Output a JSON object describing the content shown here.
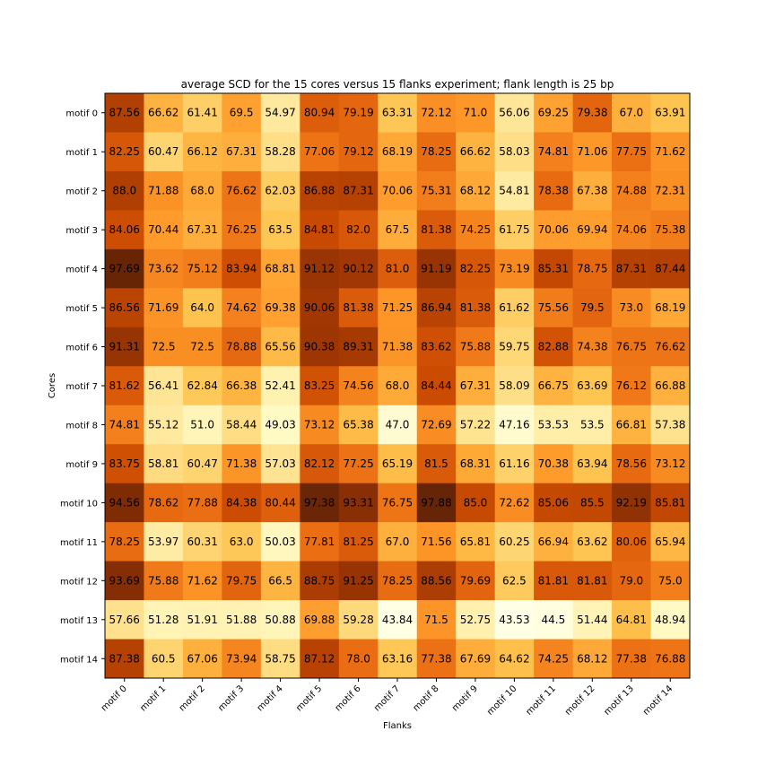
{
  "chart_data": {
    "type": "heatmap",
    "title": "average SCD for the 15 cores versus 15 flanks experiment; flank length is 25 bp",
    "xlabel": "Flanks",
    "ylabel": "Cores",
    "x_categories": [
      "motif 0",
      "motif 1",
      "motif 2",
      "motif 3",
      "motif 4",
      "motif 5",
      "motif 6",
      "motif 7",
      "motif 8",
      "motif 9",
      "motif 10",
      "motif 11",
      "motif 12",
      "motif 13",
      "motif 14"
    ],
    "y_categories": [
      "motif 0",
      "motif 1",
      "motif 2",
      "motif 3",
      "motif 4",
      "motif 5",
      "motif 6",
      "motif 7",
      "motif 8",
      "motif 9",
      "motif 10",
      "motif 11",
      "motif 12",
      "motif 13",
      "motif 14"
    ],
    "colormap": "YlOrBr",
    "color_range": [
      43.53,
      97.88
    ],
    "values": [
      [
        "87.56",
        "66.62",
        "61.41",
        "69.5",
        "54.97",
        "80.94",
        "79.19",
        "63.31",
        "72.12",
        "71.0",
        "56.06",
        "69.25",
        "79.38",
        "67.0",
        "63.91"
      ],
      [
        "82.25",
        "60.47",
        "66.12",
        "67.31",
        "58.28",
        "77.06",
        "79.12",
        "68.19",
        "78.25",
        "66.62",
        "58.03",
        "74.81",
        "71.06",
        "77.75",
        "71.62"
      ],
      [
        "88.0",
        "71.88",
        "68.0",
        "76.62",
        "62.03",
        "86.88",
        "87.31",
        "70.06",
        "75.31",
        "68.12",
        "54.81",
        "78.38",
        "67.38",
        "74.88",
        "72.31"
      ],
      [
        "84.06",
        "70.44",
        "67.31",
        "76.25",
        "63.5",
        "84.81",
        "82.0",
        "67.5",
        "81.38",
        "74.25",
        "61.75",
        "70.06",
        "69.94",
        "74.06",
        "75.38"
      ],
      [
        "97.69",
        "73.62",
        "75.12",
        "83.94",
        "68.81",
        "91.12",
        "90.12",
        "81.0",
        "91.19",
        "82.25",
        "73.19",
        "85.31",
        "78.75",
        "87.31",
        "87.44"
      ],
      [
        "86.56",
        "71.69",
        "64.0",
        "74.62",
        "69.38",
        "90.06",
        "81.38",
        "71.25",
        "86.94",
        "81.38",
        "61.62",
        "75.56",
        "79.5",
        "73.0",
        "68.19"
      ],
      [
        "91.31",
        "72.5",
        "72.5",
        "78.88",
        "65.56",
        "90.38",
        "89.31",
        "71.38",
        "83.62",
        "75.88",
        "59.75",
        "82.88",
        "74.38",
        "76.75",
        "76.62"
      ],
      [
        "81.62",
        "56.41",
        "62.84",
        "66.38",
        "52.41",
        "83.25",
        "74.56",
        "68.0",
        "84.44",
        "67.31",
        "58.09",
        "66.75",
        "63.69",
        "76.12",
        "66.88"
      ],
      [
        "74.81",
        "55.12",
        "51.0",
        "58.44",
        "49.03",
        "73.12",
        "65.38",
        "47.0",
        "72.69",
        "57.22",
        "47.16",
        "53.53",
        "53.5",
        "66.81",
        "57.38"
      ],
      [
        "83.75",
        "58.81",
        "60.47",
        "71.38",
        "57.03",
        "82.12",
        "77.25",
        "65.19",
        "81.5",
        "68.31",
        "61.16",
        "70.38",
        "63.94",
        "78.56",
        "73.12"
      ],
      [
        "94.56",
        "78.62",
        "77.88",
        "84.38",
        "80.44",
        "97.38",
        "93.31",
        "76.75",
        "97.88",
        "85.0",
        "72.62",
        "85.06",
        "85.5",
        "92.19",
        "85.81"
      ],
      [
        "78.25",
        "53.97",
        "60.31",
        "63.0",
        "50.03",
        "77.81",
        "81.25",
        "67.0",
        "71.56",
        "65.81",
        "60.25",
        "66.94",
        "63.62",
        "80.06",
        "65.94"
      ],
      [
        "93.69",
        "75.88",
        "71.62",
        "79.75",
        "66.5",
        "88.75",
        "91.25",
        "78.25",
        "88.56",
        "79.69",
        "62.5",
        "81.81",
        "81.81",
        "79.0",
        "75.0"
      ],
      [
        "57.66",
        "51.28",
        "51.91",
        "51.88",
        "50.88",
        "69.88",
        "59.28",
        "43.84",
        "71.5",
        "52.75",
        "43.53",
        "44.5",
        "51.44",
        "64.81",
        "48.94"
      ],
      [
        "87.38",
        "60.5",
        "67.06",
        "73.94",
        "58.75",
        "87.12",
        "78.0",
        "63.16",
        "77.38",
        "67.69",
        "64.62",
        "74.25",
        "68.12",
        "77.38",
        "76.88"
      ]
    ]
  }
}
